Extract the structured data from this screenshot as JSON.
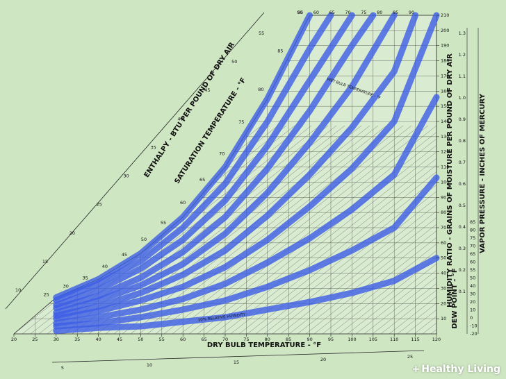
{
  "brand": {
    "plus": "+",
    "name": "Healthy Living"
  },
  "chart_data": {
    "type": "line",
    "title": "",
    "xlabel": "DRY BULB TEMPERATURE - °F",
    "ylabel": "HUMIDITY RATIO - GRAINS OF MOISTURE PER POUND OF DRY AIR",
    "right_labels": {
      "dew_point": "DEW POINT - °F",
      "vapor_pressure": "VAPOR PRESSURE - INCHES OF MERCURY"
    },
    "diagonal_labels": {
      "enthalpy": "ENTHALPY - BTU PER POUND OF DRY AIR",
      "saturation": "SATURATION TEMPERATURE - °F",
      "wet_bulb": "WET BULB TEMPERATURE - °F",
      "relative_humidity": "10% RELATIVE HUMIDITY"
    },
    "xlim": [
      20,
      120
    ],
    "ylim": [
      0,
      210
    ],
    "x_ticks": [
      20,
      25,
      30,
      35,
      40,
      45,
      50,
      55,
      60,
      65,
      70,
      75,
      80,
      85,
      90,
      95,
      100,
      105,
      110,
      115,
      120
    ],
    "y_ticks": [
      10,
      20,
      30,
      40,
      50,
      60,
      70,
      80,
      90,
      100,
      110,
      120,
      130,
      140,
      150,
      160,
      170,
      180,
      190,
      200,
      210
    ],
    "dew_point_ticks": [
      "-20",
      "-10",
      "0",
      "10",
      "20",
      "30",
      "40",
      "50",
      "55",
      "60",
      "65",
      "70",
      "75",
      "80",
      "85"
    ],
    "vapor_pressure_ticks": [
      "0.1",
      "0.2",
      "0.3",
      "0.4",
      "0.5",
      "0.6",
      "0.7",
      "0.8",
      "0.9",
      "1.0",
      "1.1",
      "1.2",
      "1.3"
    ],
    "saturation_ticks": [
      "25",
      "30",
      "35",
      "40",
      "45",
      "50",
      "55",
      "60",
      "65",
      "70",
      "75",
      "80",
      "85",
      "90"
    ],
    "enthalpy_ticks": [
      "10",
      "15",
      "20",
      "25",
      "30",
      "35",
      "40",
      "45",
      "50",
      "55"
    ],
    "bottom_scale_ticks": [
      "5",
      "10",
      "15",
      "20",
      "25"
    ],
    "top_ticks": [
      "55",
      "60",
      "65",
      "70",
      "75",
      "80",
      "85",
      "90"
    ],
    "series": [
      {
        "name": "100%",
        "x": [
          30,
          40,
          50,
          60,
          70,
          80,
          90
        ],
        "y": [
          24,
          36,
          53,
          77,
          110,
          155,
          210
        ]
      },
      {
        "name": "",
        "x": [
          30,
          40,
          50,
          60,
          70,
          80,
          90,
          95
        ],
        "y": [
          22,
          33,
          48,
          70,
          99,
          140,
          188,
          210
        ]
      },
      {
        "name": "",
        "x": [
          30,
          40,
          50,
          60,
          70,
          80,
          90,
          100
        ],
        "y": [
          19,
          29,
          43,
          62,
          88,
          124,
          167,
          210
        ]
      },
      {
        "name": "",
        "x": [
          30,
          40,
          50,
          60,
          70,
          80,
          90,
          100,
          105
        ],
        "y": [
          17,
          25,
          37,
          54,
          77,
          109,
          147,
          190,
          210
        ]
      },
      {
        "name": "",
        "x": [
          30,
          40,
          50,
          60,
          70,
          80,
          90,
          100,
          110
        ],
        "y": [
          14,
          22,
          32,
          46,
          66,
          93,
          126,
          163,
          210
        ]
      },
      {
        "name": "",
        "x": [
          30,
          40,
          50,
          60,
          70,
          80,
          90,
          100,
          110,
          115
        ],
        "y": [
          12,
          18,
          27,
          39,
          55,
          78,
          105,
          136,
          173,
          210
        ]
      },
      {
        "name": "",
        "x": [
          30,
          40,
          50,
          60,
          70,
          80,
          90,
          100,
          110,
          120
        ],
        "y": [
          10,
          15,
          22,
          31,
          44,
          62,
          84,
          109,
          140,
          210
        ]
      },
      {
        "name": "",
        "x": [
          30,
          40,
          50,
          60,
          70,
          80,
          90,
          100,
          110,
          120
        ],
        "y": [
          7,
          11,
          16,
          23,
          33,
          47,
          63,
          82,
          105,
          156
        ]
      },
      {
        "name": "",
        "x": [
          30,
          40,
          50,
          60,
          70,
          80,
          90,
          100,
          110,
          120
        ],
        "y": [
          5,
          7,
          11,
          16,
          22,
          31,
          42,
          55,
          70,
          103
        ]
      },
      {
        "name": "",
        "x": [
          30,
          40,
          50,
          60,
          70,
          80,
          90,
          100,
          110,
          120
        ],
        "y": [
          2,
          4,
          5,
          8,
          11,
          16,
          21,
          27,
          35,
          50
        ]
      }
    ],
    "grid": true,
    "colors": {
      "background": "#cfe6c3",
      "plot": "#d9ecd1",
      "curve": "#3c5ee6",
      "grid": "#333333"
    }
  }
}
